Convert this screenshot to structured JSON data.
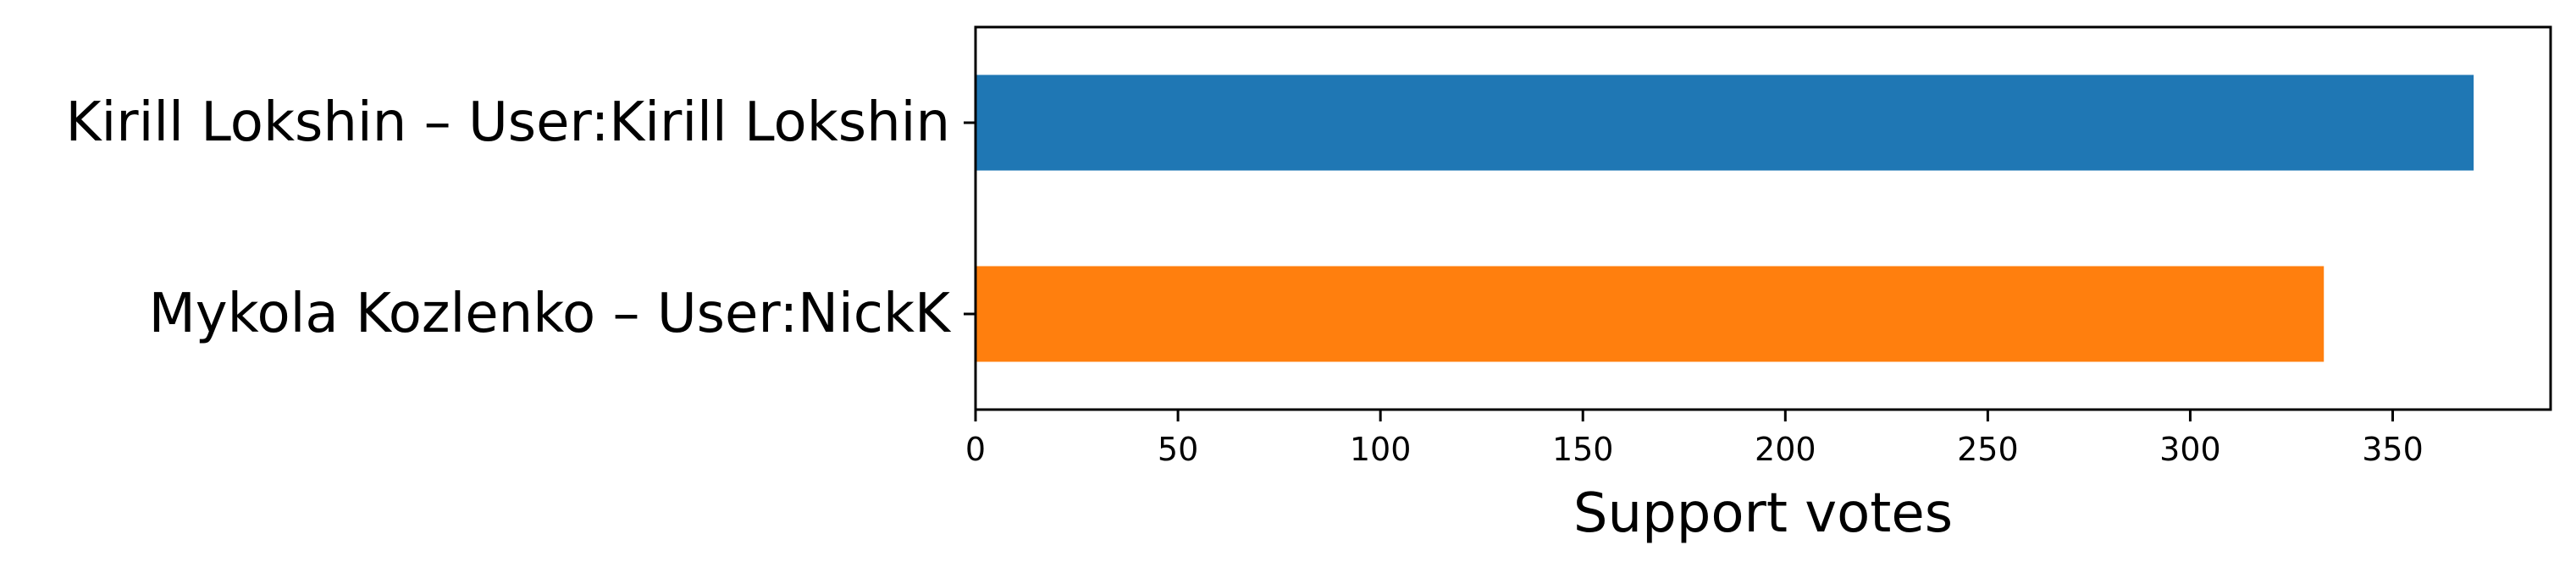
{
  "chart_data": {
    "type": "bar",
    "orientation": "horizontal",
    "categories": [
      "Kirill Lokshin – User:Kirill Lokshin",
      "Mykola Kozlenko – User:NickK"
    ],
    "values": [
      370,
      333
    ],
    "colors": [
      "#1f77b4",
      "#ff7f0e"
    ],
    "xlabel": "Support votes",
    "ylabel": "",
    "title": "",
    "xlim": [
      0,
      389
    ],
    "xticks": [
      0,
      50,
      100,
      150,
      200,
      250,
      300,
      350
    ],
    "grid": false,
    "legend": "none"
  }
}
